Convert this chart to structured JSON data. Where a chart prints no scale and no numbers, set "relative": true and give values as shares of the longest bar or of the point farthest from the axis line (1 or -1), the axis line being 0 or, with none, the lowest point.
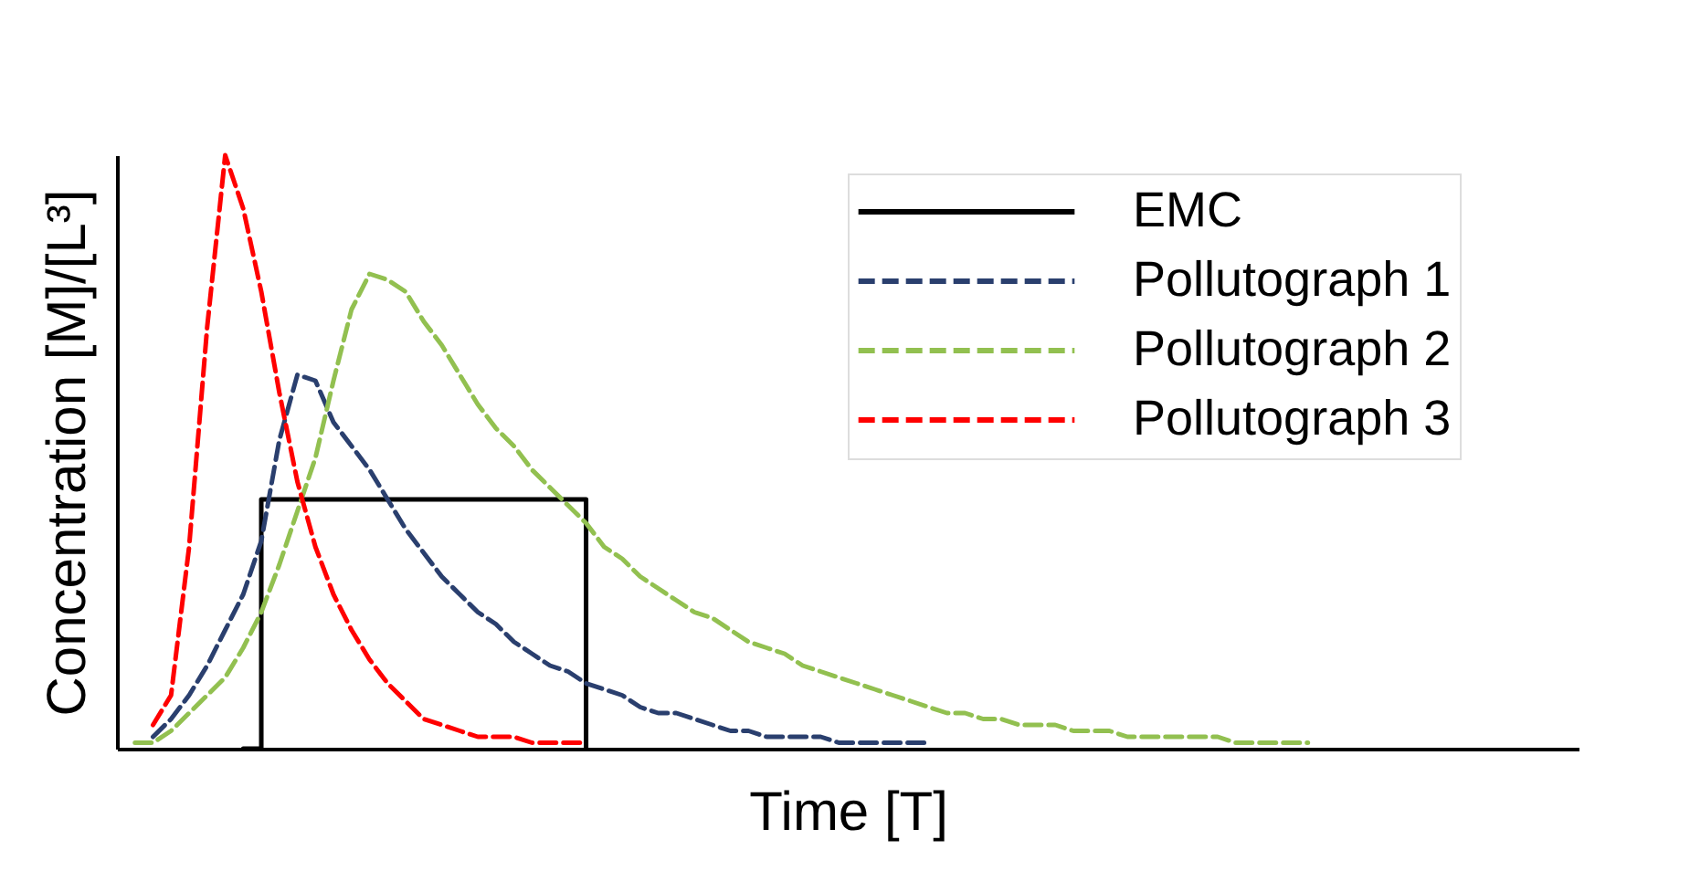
{
  "chart_data": {
    "type": "line",
    "relative": true,
    "xlabel": "Time [T]",
    "ylabel": "Concentration [M]/[L³]",
    "tick_labels": false,
    "legend": "top right",
    "grid": false,
    "categories": [
      null,
      null,
      null,
      null,
      null,
      null,
      null,
      null,
      null,
      null,
      null,
      null,
      null,
      null,
      null,
      null,
      null,
      null,
      null,
      null,
      null,
      null,
      null,
      null,
      null,
      null,
      null,
      null,
      null,
      null,
      null,
      null,
      null,
      null,
      null,
      null,
      null,
      null,
      null,
      null,
      null,
      null,
      null,
      null,
      null,
      null,
      null,
      null,
      null,
      null,
      null,
      null,
      null,
      null,
      null,
      null,
      null,
      null,
      null,
      null,
      null,
      null,
      null,
      null,
      null,
      null,
      null,
      null,
      null,
      null,
      null,
      null,
      null,
      null,
      null,
      null,
      null,
      null,
      null,
      null
    ],
    "series": [
      {
        "name": "EMC",
        "type": "step",
        "color": "#000000",
        "line_style": "solid",
        "values": [
          null,
          null,
          null,
          null,
          null,
          null,
          0,
          0.42,
          0.42,
          0.42,
          0.42,
          0.42,
          0.42,
          0.42,
          0.42,
          0.42,
          0.42,
          0.42,
          0.42,
          0.42,
          0.42,
          0.42,
          0.42,
          0.42,
          0.42,
          0,
          null,
          null,
          null,
          null,
          null,
          null,
          null,
          null,
          null,
          null,
          null,
          null,
          null,
          null,
          null,
          null,
          null,
          null,
          null,
          null,
          null,
          null,
          null,
          null,
          null,
          null,
          null,
          null,
          null,
          null,
          null,
          null,
          null,
          null,
          null,
          null,
          null,
          null,
          null,
          null,
          null,
          null,
          null,
          null,
          null,
          null,
          null,
          null,
          null,
          null,
          null,
          null,
          null,
          null
        ]
      },
      {
        "name": "Pollutograph 1",
        "color": "#2a3f6e",
        "line_style": "dashed",
        "values": [
          null,
          0.02,
          0.05,
          0.09,
          0.14,
          0.2,
          0.26,
          0.35,
          0.52,
          0.63,
          0.62,
          0.55,
          0.51,
          0.47,
          0.42,
          0.37,
          0.33,
          0.29,
          0.26,
          0.23,
          0.21,
          0.18,
          0.16,
          0.14,
          0.13,
          0.11,
          0.1,
          0.09,
          0.07,
          0.06,
          0.06,
          0.05,
          0.04,
          0.03,
          0.03,
          0.02,
          0.02,
          0.02,
          0.02,
          0.01,
          0.01,
          0.01,
          0.01,
          0.01,
          0.01,
          null,
          null,
          null,
          null,
          null,
          null,
          null,
          null,
          null,
          null,
          null,
          null,
          null,
          null,
          null,
          null,
          null,
          null,
          null,
          null,
          null,
          null,
          null,
          null,
          null,
          null,
          null,
          null,
          null,
          null,
          null,
          null,
          null,
          null,
          null
        ]
      },
      {
        "name": "Pollutograph 2",
        "color": "#92c050",
        "line_style": "dashed",
        "values": [
          0.01,
          0.01,
          0.03,
          0.06,
          0.09,
          0.12,
          0.17,
          0.23,
          0.31,
          0.4,
          0.49,
          0.62,
          0.74,
          0.8,
          0.79,
          0.77,
          0.72,
          0.68,
          0.63,
          0.58,
          0.54,
          0.51,
          0.47,
          0.44,
          0.41,
          0.38,
          0.34,
          0.32,
          0.29,
          0.27,
          0.25,
          0.23,
          0.22,
          0.2,
          0.18,
          0.17,
          0.16,
          0.14,
          0.13,
          0.12,
          0.11,
          0.1,
          0.09,
          0.08,
          0.07,
          0.06,
          0.06,
          0.05,
          0.05,
          0.04,
          0.04,
          0.04,
          0.03,
          0.03,
          0.03,
          0.02,
          0.02,
          0.02,
          0.02,
          0.02,
          0.02,
          0.01,
          0.01,
          0.01,
          0.01,
          0.01,
          null,
          null,
          null,
          null,
          null,
          null,
          null,
          null,
          null,
          null,
          null,
          null,
          null,
          null
        ]
      },
      {
        "name": "Pollutograph 3",
        "color": "#ff0000",
        "line_style": "dashed",
        "values": [
          null,
          0.04,
          0.09,
          0.34,
          0.71,
          1,
          0.91,
          0.77,
          0.6,
          0.45,
          0.34,
          0.26,
          0.2,
          0.15,
          0.11,
          0.08,
          0.05,
          0.04,
          0.03,
          0.02,
          0.02,
          0.02,
          0.01,
          0.01,
          0.01,
          0.01,
          null,
          null,
          null,
          null,
          null,
          null,
          null,
          null,
          null,
          null,
          null,
          null,
          null,
          null,
          null,
          null,
          null,
          null,
          null,
          null,
          null,
          null,
          null,
          null,
          null,
          null,
          null,
          null,
          null,
          null,
          null,
          null,
          null,
          null,
          null,
          null,
          null,
          null,
          null,
          null,
          null,
          null,
          null,
          null,
          null,
          null,
          null,
          null,
          null,
          null,
          null,
          null,
          null,
          null
        ]
      }
    ]
  }
}
